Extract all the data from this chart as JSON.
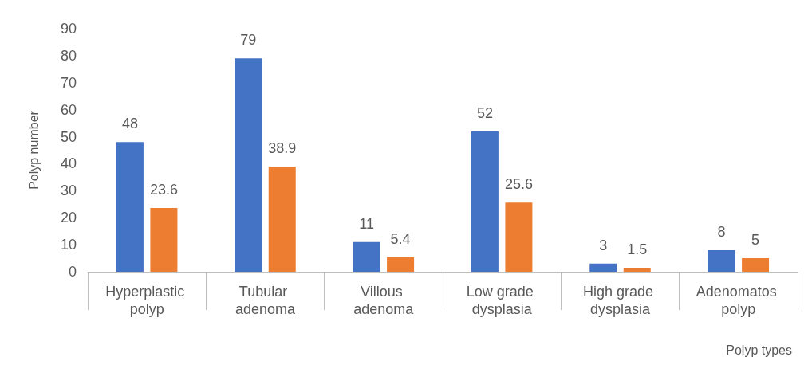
{
  "chart_data": {
    "type": "bar",
    "categories": [
      "Hyperplastic polyp",
      "Tubular adenoma",
      "Villous adenoma",
      "Low grade dysplasia",
      "High grade dysplasia",
      "Adenomatos polyp"
    ],
    "series": [
      {
        "color": "#4472c4",
        "values": [
          48,
          79,
          11,
          52,
          3,
          8
        ]
      },
      {
        "color": "#ed7d31",
        "values": [
          23.6,
          38.9,
          5.4,
          25.6,
          1.5,
          5
        ]
      }
    ],
    "ylim": [
      0,
      90
    ],
    "yticks": [
      0,
      10,
      20,
      30,
      40,
      50,
      60,
      70,
      80,
      90
    ],
    "xlabel": "Polyp types",
    "ylabel": "Polyp number",
    "data_labels": true,
    "grid": false
  }
}
